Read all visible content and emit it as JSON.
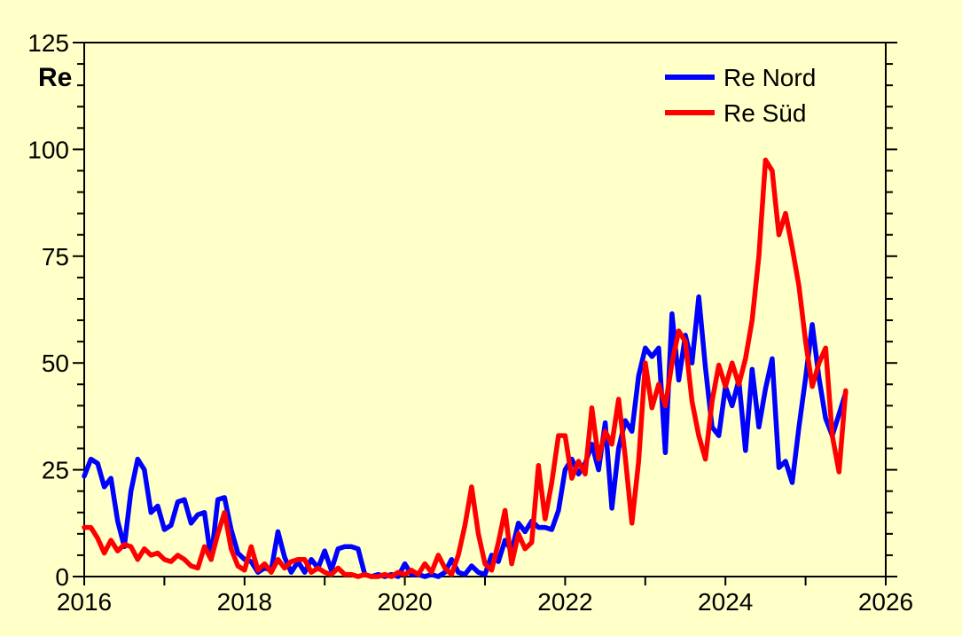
{
  "chart_data": {
    "type": "line",
    "title": "",
    "ylabel": "Re",
    "xlim": [
      2016,
      2026
    ],
    "ylim": [
      0,
      125
    ],
    "x_major_ticks": [
      "2016",
      "2018",
      "2020",
      "2022",
      "2024",
      "2026"
    ],
    "x_major_tick_values": [
      2016,
      2018,
      2020,
      2022,
      2024,
      2026
    ],
    "x_minor_step": 1,
    "y_major_ticks": [
      "0",
      "25",
      "50",
      "75",
      "100",
      "125"
    ],
    "y_major_tick_values": [
      0,
      25,
      50,
      75,
      100,
      125
    ],
    "y_minor_step": 5,
    "grid": false,
    "legend_position": "top-right",
    "background_color": "#FFFFC8",
    "axis_color": "#000000",
    "x_start": 2016.0,
    "x_step": 0.0833,
    "x_unit": "year (monthly samples)",
    "series": [
      {
        "name": "Re Nord",
        "color": "#0000FF",
        "values": [
          23.5,
          27.5,
          26.5,
          21,
          23,
          13,
          7,
          20,
          27.5,
          25,
          15,
          16.5,
          11,
          12,
          17.5,
          18,
          12.5,
          14.5,
          15,
          4,
          18,
          18.5,
          11,
          5.5,
          4,
          3.5,
          1,
          2,
          1.5,
          10.5,
          4.5,
          1,
          3.5,
          1,
          4,
          2,
          6,
          1.5,
          6.5,
          7,
          7,
          6.5,
          0.5,
          0,
          0.5,
          0,
          0.5,
          0,
          3,
          0.5,
          0.5,
          0,
          0.5,
          0,
          1,
          4,
          1,
          0.5,
          2.5,
          1,
          0.5,
          5,
          3.5,
          8.5,
          6,
          12.5,
          10.5,
          13,
          11.5,
          11.5,
          11,
          15.5,
          25,
          27.5,
          24,
          26.5,
          31,
          25,
          36,
          16,
          30,
          36.5,
          34,
          47,
          53.5,
          51.5,
          53.5,
          29,
          61.5,
          46,
          56.5,
          50,
          65.5,
          49,
          35,
          33,
          44.5,
          40,
          46,
          29.5,
          48.5,
          35,
          44,
          51,
          25.5,
          27,
          22,
          35,
          46.5,
          59,
          46.5,
          37,
          33,
          38,
          43
        ]
      },
      {
        "name": "Re Süd",
        "color": "#FF0000",
        "values": [
          11.5,
          11.5,
          9,
          5.5,
          8.5,
          6,
          7.5,
          7,
          4,
          6.5,
          5,
          5.5,
          4,
          3.5,
          5,
          4,
          2.5,
          2,
          7,
          4,
          10,
          15,
          6.5,
          2.5,
          1.5,
          7,
          1.5,
          3,
          1,
          4,
          2,
          3.5,
          4,
          4,
          1,
          2,
          1,
          0.5,
          2,
          0.5,
          0.5,
          0,
          0.5,
          0,
          0,
          0.5,
          0,
          1,
          0.5,
          1.5,
          0.5,
          3,
          1,
          5,
          2,
          0.5,
          5,
          12,
          21,
          10,
          3,
          1.5,
          8,
          15.5,
          3,
          10,
          6.5,
          8,
          26,
          13.5,
          22,
          33,
          33,
          23,
          27,
          24,
          39.5,
          27.5,
          34,
          31,
          41.5,
          28,
          12.5,
          27,
          50,
          39.5,
          45,
          40,
          50,
          57.5,
          55,
          41,
          33,
          27.5,
          41,
          49.5,
          44.5,
          50,
          45,
          51,
          60,
          75,
          97.5,
          95,
          80,
          85,
          77,
          68,
          55,
          44.5,
          50,
          53.5,
          33,
          24.5,
          43.5
        ]
      }
    ]
  }
}
